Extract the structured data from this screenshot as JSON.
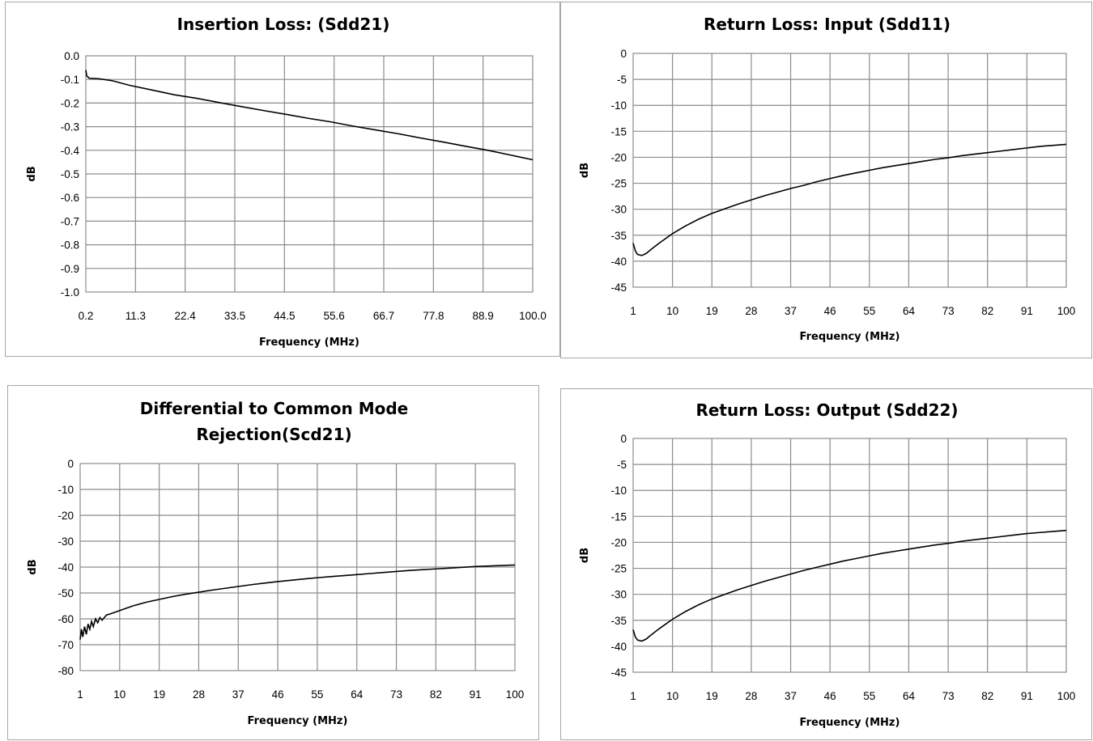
{
  "chart_data": [
    {
      "type": "line",
      "title": [
        "Insertion Loss: (Sdd21)"
      ],
      "xlabel": "Frequency (MHz)",
      "ylabel": "dB",
      "categories": [
        "0.2",
        "11.3",
        "22.4",
        "33.5",
        "44.5",
        "55.6",
        "66.7",
        "77.8",
        "88.9",
        "100.0"
      ],
      "xlim": [
        0.2,
        100.0
      ],
      "yticks": [
        "0.0",
        "-0.1",
        "-0.2",
        "-0.3",
        "-0.4",
        "-0.5",
        "-0.6",
        "-0.7",
        "-0.8",
        "-0.9",
        "-1.0"
      ],
      "ylim": [
        -1.0,
        0.0
      ],
      "grid": true,
      "legend": "none",
      "series": [
        {
          "values": [
            [
              0.2,
              -0.06
            ],
            [
              0.4,
              -0.085
            ],
            [
              1,
              -0.095
            ],
            [
              3,
              -0.097
            ],
            [
              6,
              -0.105
            ],
            [
              10,
              -0.125
            ],
            [
              15,
              -0.145
            ],
            [
              20,
              -0.165
            ],
            [
              25,
              -0.18
            ],
            [
              30,
              -0.198
            ],
            [
              35,
              -0.215
            ],
            [
              40,
              -0.232
            ],
            [
              45,
              -0.248
            ],
            [
              50,
              -0.265
            ],
            [
              55,
              -0.28
            ],
            [
              60,
              -0.298
            ],
            [
              65,
              -0.314
            ],
            [
              70,
              -0.33
            ],
            [
              75,
              -0.348
            ],
            [
              80,
              -0.365
            ],
            [
              85,
              -0.383
            ],
            [
              90,
              -0.4
            ],
            [
              95,
              -0.42
            ],
            [
              100,
              -0.44
            ]
          ]
        }
      ]
    },
    {
      "type": "line",
      "title": [
        "Return Loss: Input (Sdd11)"
      ],
      "xlabel": "Frequency (MHz)",
      "ylabel": "dB",
      "categories": [
        "1",
        "10",
        "19",
        "28",
        "37",
        "46",
        "55",
        "64",
        "73",
        "82",
        "91",
        "100"
      ],
      "xlim": [
        1,
        100
      ],
      "yticks": [
        "0",
        "-5",
        "-10",
        "-15",
        "-20",
        "-25",
        "-30",
        "-35",
        "-40",
        "-45"
      ],
      "ylim": [
        -45,
        0
      ],
      "grid": true,
      "legend": "none",
      "series": [
        {
          "values": [
            [
              1,
              -36.5
            ],
            [
              1.5,
              -38
            ],
            [
              2,
              -38.7
            ],
            [
              3,
              -38.9
            ],
            [
              4,
              -38.5
            ],
            [
              5,
              -37.8
            ],
            [
              7,
              -36.5
            ],
            [
              10,
              -34.7
            ],
            [
              13,
              -33.2
            ],
            [
              16,
              -31.9
            ],
            [
              19,
              -30.8
            ],
            [
              22,
              -29.9
            ],
            [
              25,
              -29
            ],
            [
              28,
              -28.2
            ],
            [
              31,
              -27.4
            ],
            [
              34,
              -26.7
            ],
            [
              37,
              -26
            ],
            [
              40,
              -25.4
            ],
            [
              43,
              -24.7
            ],
            [
              46,
              -24.1
            ],
            [
              49,
              -23.5
            ],
            [
              52,
              -23
            ],
            [
              55,
              -22.5
            ],
            [
              58,
              -22
            ],
            [
              61,
              -21.6
            ],
            [
              64,
              -21.2
            ],
            [
              67,
              -20.8
            ],
            [
              70,
              -20.4
            ],
            [
              73,
              -20.1
            ],
            [
              76,
              -19.7
            ],
            [
              79,
              -19.4
            ],
            [
              82,
              -19.1
            ],
            [
              85,
              -18.8
            ],
            [
              88,
              -18.5
            ],
            [
              91,
              -18.2
            ],
            [
              94,
              -17.9
            ],
            [
              97,
              -17.7
            ],
            [
              100,
              -17.5
            ]
          ]
        }
      ]
    },
    {
      "type": "line",
      "title": [
        "Differential to Common Mode",
        "Rejection(Scd21)"
      ],
      "xlabel": "Frequency (MHz)",
      "ylabel": "dB",
      "categories": [
        "1",
        "10",
        "19",
        "28",
        "37",
        "46",
        "55",
        "64",
        "73",
        "82",
        "91",
        "100"
      ],
      "xlim": [
        1,
        100
      ],
      "yticks": [
        "0",
        "-10",
        "-20",
        "-30",
        "-40",
        "-50",
        "-60",
        "-70",
        "-80"
      ],
      "ylim": [
        -80,
        0
      ],
      "grid": true,
      "legend": "none",
      "series": [
        {
          "values": [
            [
              1,
              -68
            ],
            [
              1.3,
              -64
            ],
            [
              1.6,
              -67
            ],
            [
              2,
              -63
            ],
            [
              2.4,
              -66
            ],
            [
              2.8,
              -62
            ],
            [
              3.2,
              -64
            ],
            [
              3.6,
              -61
            ],
            [
              4,
              -63
            ],
            [
              4.5,
              -60
            ],
            [
              5,
              -61.5
            ],
            [
              5.5,
              -59.5
            ],
            [
              6,
              -60.5
            ],
            [
              7,
              -58.5
            ],
            [
              8,
              -58
            ],
            [
              10,
              -56.8
            ],
            [
              13,
              -55
            ],
            [
              16,
              -53.6
            ],
            [
              19,
              -52.5
            ],
            [
              22,
              -51.4
            ],
            [
              25,
              -50.5
            ],
            [
              28,
              -49.7
            ],
            [
              31,
              -48.9
            ],
            [
              34,
              -48.2
            ],
            [
              37,
              -47.5
            ],
            [
              40,
              -46.8
            ],
            [
              43,
              -46.2
            ],
            [
              46,
              -45.6
            ],
            [
              49,
              -45.1
            ],
            [
              52,
              -44.6
            ],
            [
              55,
              -44.1
            ],
            [
              58,
              -43.7
            ],
            [
              61,
              -43.3
            ],
            [
              64,
              -42.9
            ],
            [
              67,
              -42.5
            ],
            [
              70,
              -42.1
            ],
            [
              73,
              -41.7
            ],
            [
              76,
              -41.3
            ],
            [
              79,
              -41
            ],
            [
              82,
              -40.7
            ],
            [
              85,
              -40.4
            ],
            [
              88,
              -40.1
            ],
            [
              91,
              -39.8
            ],
            [
              94,
              -39.6
            ],
            [
              97,
              -39.4
            ],
            [
              100,
              -39.2
            ]
          ]
        }
      ]
    },
    {
      "type": "line",
      "title": [
        "Return Loss: Output (Sdd22)"
      ],
      "xlabel": "Frequency (MHz)",
      "ylabel": "dB",
      "categories": [
        "1",
        "10",
        "19",
        "28",
        "37",
        "46",
        "55",
        "64",
        "73",
        "82",
        "91",
        "100"
      ],
      "xlim": [
        1,
        100
      ],
      "yticks": [
        "0",
        "-5",
        "-10",
        "-15",
        "-20",
        "-25",
        "-30",
        "-35",
        "-40",
        "-45"
      ],
      "ylim": [
        -45,
        0
      ],
      "grid": true,
      "legend": "none",
      "series": [
        {
          "values": [
            [
              1,
              -36.8
            ],
            [
              1.5,
              -38.2
            ],
            [
              2,
              -38.8
            ],
            [
              3,
              -39
            ],
            [
              4,
              -38.6
            ],
            [
              5,
              -37.9
            ],
            [
              7,
              -36.6
            ],
            [
              10,
              -34.8
            ],
            [
              13,
              -33.3
            ],
            [
              16,
              -32
            ],
            [
              19,
              -30.9
            ],
            [
              22,
              -30
            ],
            [
              25,
              -29.1
            ],
            [
              28,
              -28.3
            ],
            [
              31,
              -27.5
            ],
            [
              34,
              -26.8
            ],
            [
              37,
              -26.1
            ],
            [
              40,
              -25.4
            ],
            [
              43,
              -24.8
            ],
            [
              46,
              -24.2
            ],
            [
              49,
              -23.6
            ],
            [
              52,
              -23.1
            ],
            [
              55,
              -22.6
            ],
            [
              58,
              -22.1
            ],
            [
              61,
              -21.7
            ],
            [
              64,
              -21.3
            ],
            [
              67,
              -20.9
            ],
            [
              70,
              -20.5
            ],
            [
              73,
              -20.2
            ],
            [
              76,
              -19.8
            ],
            [
              79,
              -19.5
            ],
            [
              82,
              -19.2
            ],
            [
              85,
              -18.9
            ],
            [
              88,
              -18.6
            ],
            [
              91,
              -18.3
            ],
            [
              94,
              -18.1
            ],
            [
              97,
              -17.9
            ],
            [
              100,
              -17.7
            ]
          ]
        }
      ]
    }
  ]
}
